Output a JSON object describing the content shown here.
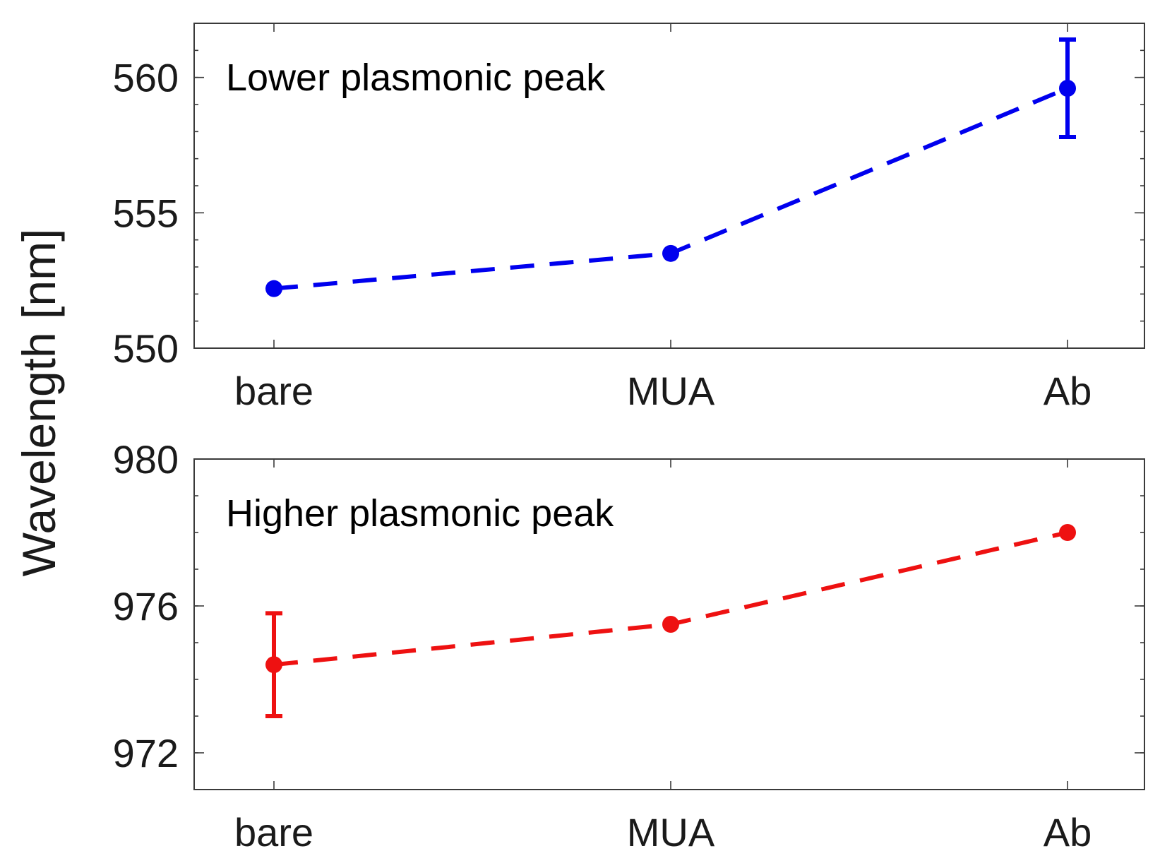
{
  "chart_data": {
    "type": "line",
    "shared_ylabel": "Wavelength [nm]",
    "categories": [
      "bare",
      "MUA",
      "Ab"
    ],
    "panels": [
      {
        "title": "Lower plasmonic peak",
        "ylim": [
          550,
          562
        ],
        "yticks": [
          550,
          555,
          560
        ],
        "series": [
          {
            "name": "Lower plasmonic peak",
            "color": "#0000ee",
            "marker": "circle",
            "values": [
              552.2,
              553.5,
              559.6
            ],
            "errors": [
              0.0,
              0.0,
              1.8
            ]
          }
        ]
      },
      {
        "title": "Higher plasmonic peak",
        "ylim": [
          971,
          980
        ],
        "yticks": [
          972,
          976,
          980
        ],
        "series": [
          {
            "name": "Higher plasmonic peak",
            "color": "#ee1111",
            "marker": "circle",
            "values": [
              974.4,
              975.5,
              978.0
            ],
            "errors": [
              1.4,
              0.0,
              0.0
            ]
          }
        ]
      }
    ]
  }
}
